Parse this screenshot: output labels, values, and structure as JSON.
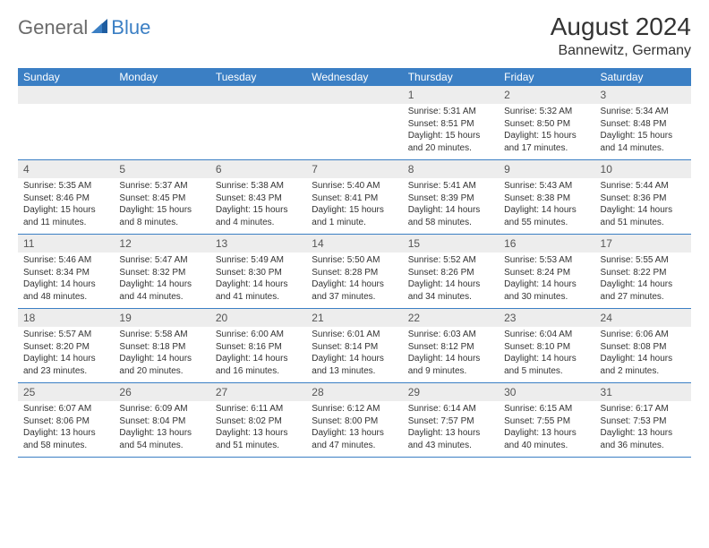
{
  "logo": {
    "part1": "General",
    "part2": "Blue"
  },
  "title": "August 2024",
  "location": "Bannewitz, Germany",
  "colors": {
    "header_bg": "#3b7fc4",
    "header_text": "#ffffff",
    "daynum_bg": "#ededed",
    "border": "#3b7fc4"
  },
  "weekdays": [
    "Sunday",
    "Monday",
    "Tuesday",
    "Wednesday",
    "Thursday",
    "Friday",
    "Saturday"
  ],
  "grid": [
    [
      null,
      null,
      null,
      null,
      {
        "n": "1",
        "sr": "Sunrise: 5:31 AM",
        "ss": "Sunset: 8:51 PM",
        "dl": "Daylight: 15 hours and 20 minutes."
      },
      {
        "n": "2",
        "sr": "Sunrise: 5:32 AM",
        "ss": "Sunset: 8:50 PM",
        "dl": "Daylight: 15 hours and 17 minutes."
      },
      {
        "n": "3",
        "sr": "Sunrise: 5:34 AM",
        "ss": "Sunset: 8:48 PM",
        "dl": "Daylight: 15 hours and 14 minutes."
      }
    ],
    [
      {
        "n": "4",
        "sr": "Sunrise: 5:35 AM",
        "ss": "Sunset: 8:46 PM",
        "dl": "Daylight: 15 hours and 11 minutes."
      },
      {
        "n": "5",
        "sr": "Sunrise: 5:37 AM",
        "ss": "Sunset: 8:45 PM",
        "dl": "Daylight: 15 hours and 8 minutes."
      },
      {
        "n": "6",
        "sr": "Sunrise: 5:38 AM",
        "ss": "Sunset: 8:43 PM",
        "dl": "Daylight: 15 hours and 4 minutes."
      },
      {
        "n": "7",
        "sr": "Sunrise: 5:40 AM",
        "ss": "Sunset: 8:41 PM",
        "dl": "Daylight: 15 hours and 1 minute."
      },
      {
        "n": "8",
        "sr": "Sunrise: 5:41 AM",
        "ss": "Sunset: 8:39 PM",
        "dl": "Daylight: 14 hours and 58 minutes."
      },
      {
        "n": "9",
        "sr": "Sunrise: 5:43 AM",
        "ss": "Sunset: 8:38 PM",
        "dl": "Daylight: 14 hours and 55 minutes."
      },
      {
        "n": "10",
        "sr": "Sunrise: 5:44 AM",
        "ss": "Sunset: 8:36 PM",
        "dl": "Daylight: 14 hours and 51 minutes."
      }
    ],
    [
      {
        "n": "11",
        "sr": "Sunrise: 5:46 AM",
        "ss": "Sunset: 8:34 PM",
        "dl": "Daylight: 14 hours and 48 minutes."
      },
      {
        "n": "12",
        "sr": "Sunrise: 5:47 AM",
        "ss": "Sunset: 8:32 PM",
        "dl": "Daylight: 14 hours and 44 minutes."
      },
      {
        "n": "13",
        "sr": "Sunrise: 5:49 AM",
        "ss": "Sunset: 8:30 PM",
        "dl": "Daylight: 14 hours and 41 minutes."
      },
      {
        "n": "14",
        "sr": "Sunrise: 5:50 AM",
        "ss": "Sunset: 8:28 PM",
        "dl": "Daylight: 14 hours and 37 minutes."
      },
      {
        "n": "15",
        "sr": "Sunrise: 5:52 AM",
        "ss": "Sunset: 8:26 PM",
        "dl": "Daylight: 14 hours and 34 minutes."
      },
      {
        "n": "16",
        "sr": "Sunrise: 5:53 AM",
        "ss": "Sunset: 8:24 PM",
        "dl": "Daylight: 14 hours and 30 minutes."
      },
      {
        "n": "17",
        "sr": "Sunrise: 5:55 AM",
        "ss": "Sunset: 8:22 PM",
        "dl": "Daylight: 14 hours and 27 minutes."
      }
    ],
    [
      {
        "n": "18",
        "sr": "Sunrise: 5:57 AM",
        "ss": "Sunset: 8:20 PM",
        "dl": "Daylight: 14 hours and 23 minutes."
      },
      {
        "n": "19",
        "sr": "Sunrise: 5:58 AM",
        "ss": "Sunset: 8:18 PM",
        "dl": "Daylight: 14 hours and 20 minutes."
      },
      {
        "n": "20",
        "sr": "Sunrise: 6:00 AM",
        "ss": "Sunset: 8:16 PM",
        "dl": "Daylight: 14 hours and 16 minutes."
      },
      {
        "n": "21",
        "sr": "Sunrise: 6:01 AM",
        "ss": "Sunset: 8:14 PM",
        "dl": "Daylight: 14 hours and 13 minutes."
      },
      {
        "n": "22",
        "sr": "Sunrise: 6:03 AM",
        "ss": "Sunset: 8:12 PM",
        "dl": "Daylight: 14 hours and 9 minutes."
      },
      {
        "n": "23",
        "sr": "Sunrise: 6:04 AM",
        "ss": "Sunset: 8:10 PM",
        "dl": "Daylight: 14 hours and 5 minutes."
      },
      {
        "n": "24",
        "sr": "Sunrise: 6:06 AM",
        "ss": "Sunset: 8:08 PM",
        "dl": "Daylight: 14 hours and 2 minutes."
      }
    ],
    [
      {
        "n": "25",
        "sr": "Sunrise: 6:07 AM",
        "ss": "Sunset: 8:06 PM",
        "dl": "Daylight: 13 hours and 58 minutes."
      },
      {
        "n": "26",
        "sr": "Sunrise: 6:09 AM",
        "ss": "Sunset: 8:04 PM",
        "dl": "Daylight: 13 hours and 54 minutes."
      },
      {
        "n": "27",
        "sr": "Sunrise: 6:11 AM",
        "ss": "Sunset: 8:02 PM",
        "dl": "Daylight: 13 hours and 51 minutes."
      },
      {
        "n": "28",
        "sr": "Sunrise: 6:12 AM",
        "ss": "Sunset: 8:00 PM",
        "dl": "Daylight: 13 hours and 47 minutes."
      },
      {
        "n": "29",
        "sr": "Sunrise: 6:14 AM",
        "ss": "Sunset: 7:57 PM",
        "dl": "Daylight: 13 hours and 43 minutes."
      },
      {
        "n": "30",
        "sr": "Sunrise: 6:15 AM",
        "ss": "Sunset: 7:55 PM",
        "dl": "Daylight: 13 hours and 40 minutes."
      },
      {
        "n": "31",
        "sr": "Sunrise: 6:17 AM",
        "ss": "Sunset: 7:53 PM",
        "dl": "Daylight: 13 hours and 36 minutes."
      }
    ]
  ]
}
